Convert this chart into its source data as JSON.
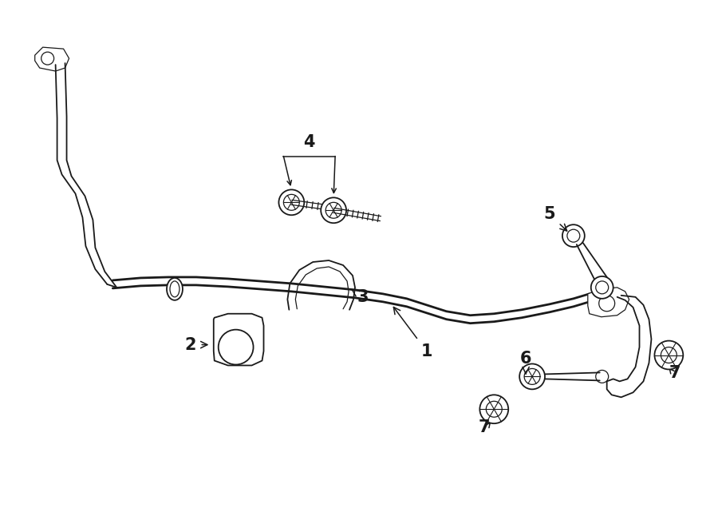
{
  "bg_color": "#ffffff",
  "line_color": "#1a1a1a",
  "fig_width": 9.0,
  "fig_height": 6.61,
  "dpi": 100,
  "lw_bar": 2.0,
  "lw_part": 1.3,
  "lw_thin": 0.9
}
